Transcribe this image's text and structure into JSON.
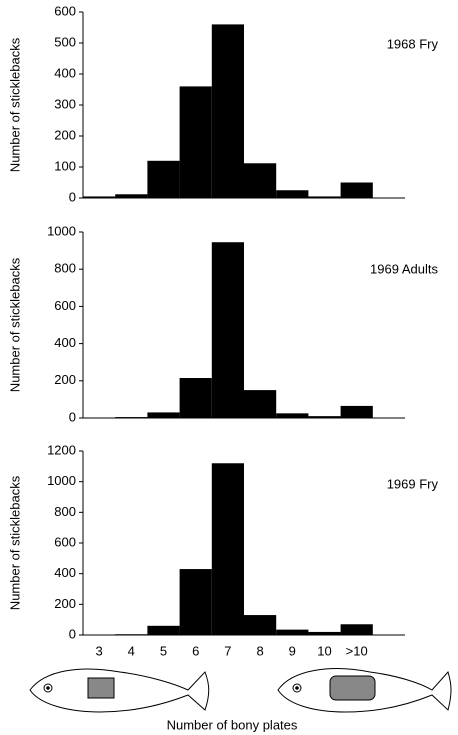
{
  "chart_data": [
    {
      "type": "bar",
      "label": "1968 Fry",
      "ylabel": "Number of sticklebacks",
      "color": "#000000",
      "values": [
        5,
        12,
        120,
        360,
        560,
        112,
        25,
        5,
        50
      ],
      "ylim": [
        0,
        600
      ],
      "yticks": [
        0,
        100,
        200,
        300,
        400,
        500,
        600
      ]
    },
    {
      "type": "bar",
      "label": "1969 Adults",
      "ylabel": "Number of sticklebacks",
      "color": "#000000",
      "values": [
        2,
        5,
        30,
        215,
        945,
        150,
        25,
        10,
        65
      ],
      "ylim": [
        0,
        1000
      ],
      "yticks": [
        0,
        200,
        400,
        600,
        800,
        1000
      ]
    },
    {
      "type": "bar",
      "label": "1969 Fry",
      "ylabel": "Number of sticklebacks",
      "color": "#000000",
      "categories": [
        "3",
        "4",
        "5",
        "6",
        "7",
        "8",
        "9",
        "10",
        ">10"
      ],
      "xlabel": "Number of bony plates",
      "values": [
        2,
        5,
        60,
        430,
        1120,
        130,
        35,
        20,
        70
      ],
      "ylim": [
        0,
        1200
      ],
      "yticks": [
        0,
        200,
        400,
        600,
        800,
        1000,
        1200
      ]
    }
  ]
}
